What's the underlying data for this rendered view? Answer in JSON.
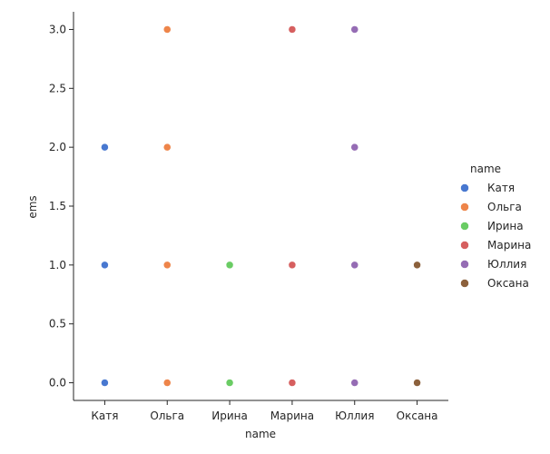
{
  "chart_data": {
    "type": "scatter",
    "title": "",
    "xlabel": "name",
    "ylabel": "ems",
    "categories": [
      "Катя",
      "Ольга",
      "Ирина",
      "Марина",
      "Юллия",
      "Оксана"
    ],
    "ylim": [
      -0.15,
      3.15
    ],
    "yticks": [
      "0.0",
      "0.5",
      "1.0",
      "1.5",
      "2.0",
      "2.5",
      "3.0"
    ],
    "grid": false,
    "legend": {
      "title": "name",
      "placement": "right"
    },
    "series": [
      {
        "name": "Катя",
        "color": "#4878d0",
        "x": [
          "Катя",
          "Катя",
          "Катя"
        ],
        "y": [
          2,
          1,
          0
        ]
      },
      {
        "name": "Ольга",
        "color": "#ee854a",
        "x": [
          "Ольга",
          "Ольга",
          "Ольга",
          "Ольга"
        ],
        "y": [
          3,
          2,
          1,
          0
        ]
      },
      {
        "name": "Ирина",
        "color": "#6acc64",
        "x": [
          "Ирина",
          "Ирина"
        ],
        "y": [
          1,
          0
        ]
      },
      {
        "name": "Марина",
        "color": "#d65f5f",
        "x": [
          "Марина",
          "Марина",
          "Марина"
        ],
        "y": [
          3,
          1,
          0
        ]
      },
      {
        "name": "Юллия",
        "color": "#956cb4",
        "x": [
          "Юллия",
          "Юллия",
          "Юллия",
          "Юллия"
        ],
        "y": [
          3,
          2,
          1,
          0
        ]
      },
      {
        "name": "Оксана",
        "color": "#8c613c",
        "x": [
          "Оксана",
          "Оксана"
        ],
        "y": [
          1,
          0
        ]
      }
    ]
  }
}
